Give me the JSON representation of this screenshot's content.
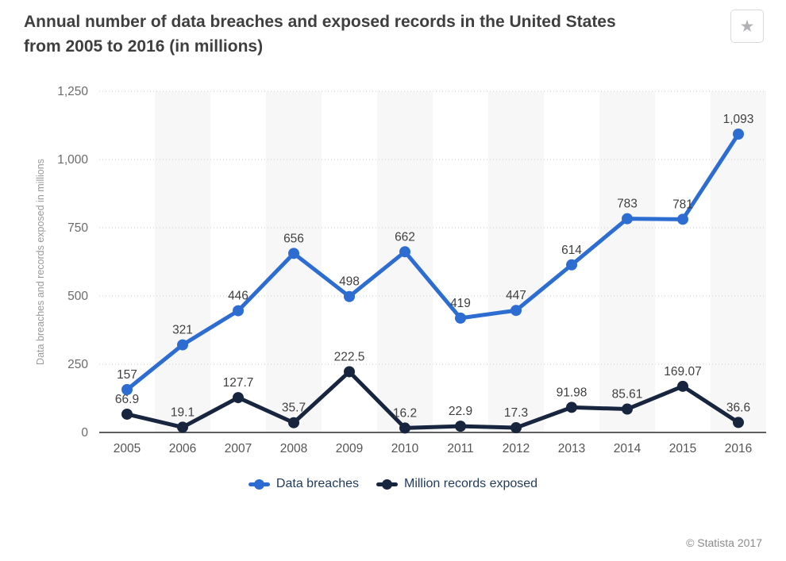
{
  "header": {
    "title": "Annual number of data breaches and exposed records in the United States from 2005 to 2016 (in millions)",
    "title_lines": [
      "Annual number of data breaches and exposed records in the United States",
      "from 2005 to 2016 (in millions)"
    ]
  },
  "icons": {
    "star": "★"
  },
  "footer": {
    "copyright": "© Statista 2017"
  },
  "chart_data": {
    "type": "line",
    "title": "Annual number of data breaches and exposed records in the United States from 2005 to 2016 (in millions)",
    "x": [
      "2005",
      "2006",
      "2007",
      "2008",
      "2009",
      "2010",
      "2011",
      "2012",
      "2013",
      "2014",
      "2015",
      "2016"
    ],
    "xlabel": "",
    "ylabel": "Data breaches and records exposed in millions",
    "ylim": [
      0,
      1250
    ],
    "yticks": [
      0,
      250,
      500,
      750,
      1000,
      1250
    ],
    "ytick_labels": [
      "0",
      "250",
      "500",
      "750",
      "1,000",
      "1,250"
    ],
    "grid": "horizontal-dotted",
    "legend_position": "bottom",
    "column_band_color": "#f7f7f7",
    "gridline_color": "#cccccc",
    "axis_color": "#5f5f5f",
    "tick_label_color": "#6b6b6b",
    "x_label_color": "#555555",
    "data_label_color": "#3f3f3f",
    "ylabel_color": "#999999",
    "legend_text_color": "#1f3a5c",
    "series": [
      {
        "name": "Data breaches",
        "color": "#2d6dd2",
        "values": [
          157,
          321,
          446,
          656,
          498,
          662,
          419,
          447,
          614,
          783,
          781,
          1093
        ],
        "labels": [
          "157",
          "321",
          "446",
          "656",
          "498",
          "662",
          "419",
          "447",
          "614",
          "783",
          "781",
          "1,093"
        ]
      },
      {
        "name": "Million records exposed",
        "color": "#17253e",
        "values": [
          66.9,
          19.1,
          127.7,
          35.7,
          222.5,
          16.2,
          22.9,
          17.3,
          91.98,
          85.61,
          169.07,
          36.6
        ],
        "labels": [
          "66.9",
          "19.1",
          "127.7",
          "35.7",
          "222.5",
          "16.2",
          "22.9",
          "17.3",
          "91.98",
          "85.61",
          "169.07",
          "36.6"
        ]
      }
    ]
  }
}
